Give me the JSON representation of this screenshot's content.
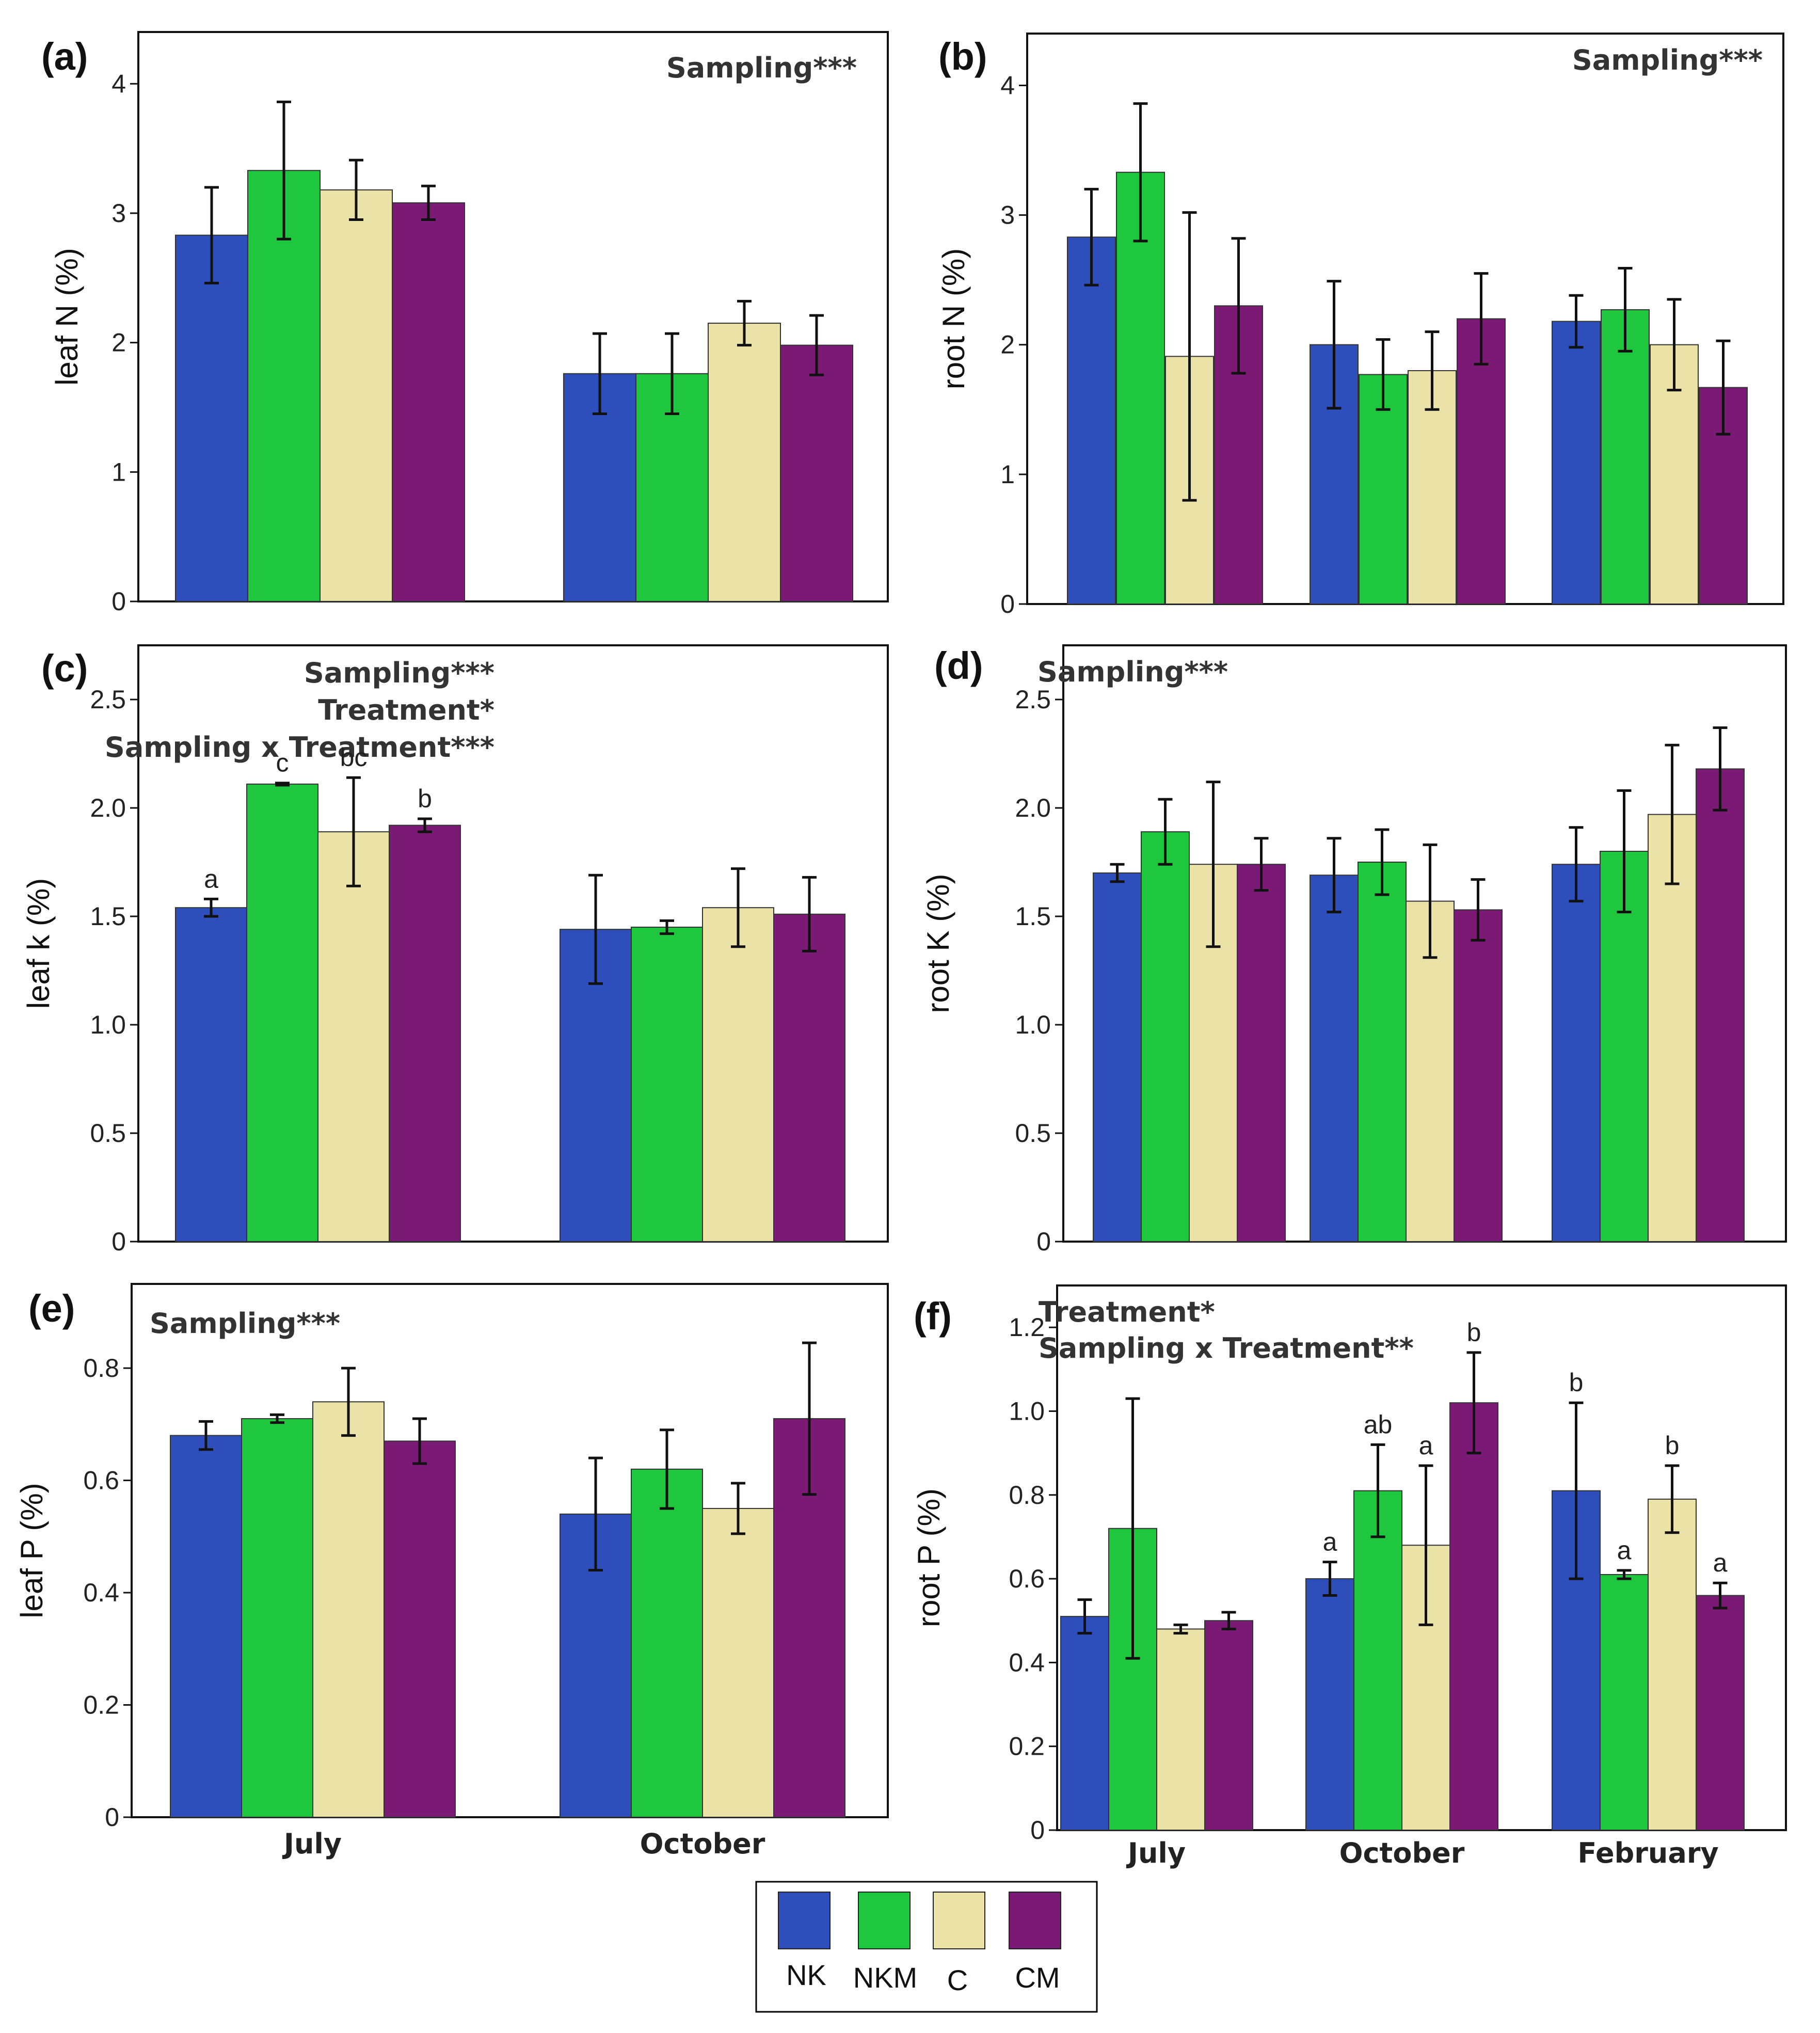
{
  "legend": {
    "items": [
      {
        "name": "NK",
        "color": "#2e4fbb"
      },
      {
        "name": "NKM",
        "color": "#1fc73f"
      },
      {
        "name": "C",
        "color": "#ebe2a8"
      },
      {
        "name": "CM",
        "color": "#7a1a74"
      }
    ]
  },
  "chart_data": [
    {
      "id": "a",
      "type": "bar",
      "panel_label": "(a)",
      "ylabel": "leaf N (%)",
      "categories": [
        "July",
        "October"
      ],
      "category_labels_shown": false,
      "ylim": [
        0,
        4.4
      ],
      "yticks": [
        0,
        1,
        2,
        3,
        4
      ],
      "ytick_labels": [
        "0",
        "1",
        "2",
        "3",
        "4"
      ],
      "stats": [
        "Sampling***"
      ],
      "stats_position": "top-right",
      "series": [
        {
          "name": "NK",
          "values": [
            2.83,
            1.76
          ],
          "errors": [
            0.37,
            0.31
          ]
        },
        {
          "name": "NKM",
          "values": [
            3.33,
            1.76
          ],
          "errors": [
            0.53,
            0.31
          ]
        },
        {
          "name": "C",
          "values": [
            3.18,
            2.15
          ],
          "errors": [
            0.23,
            0.17
          ]
        },
        {
          "name": "CM",
          "values": [
            3.08,
            1.98
          ],
          "errors": [
            0.13,
            0.23
          ]
        }
      ]
    },
    {
      "id": "b",
      "type": "bar",
      "panel_label": "(b)",
      "ylabel": "root N (%)",
      "categories": [
        "July",
        "October",
        "February"
      ],
      "category_labels_shown": false,
      "ylim": [
        0,
        4.4
      ],
      "yticks": [
        0,
        1,
        2,
        3,
        4
      ],
      "ytick_labels": [
        "0",
        "1",
        "2",
        "3",
        "4"
      ],
      "stats": [
        "Sampling***"
      ],
      "stats_position": "top-right",
      "series": [
        {
          "name": "NK",
          "values": [
            2.83,
            2.0,
            2.18
          ],
          "errors": [
            0.37,
            0.49,
            0.2
          ]
        },
        {
          "name": "NKM",
          "values": [
            3.33,
            1.77,
            2.27
          ],
          "errors": [
            0.53,
            0.27,
            0.32
          ]
        },
        {
          "name": "C",
          "values": [
            1.91,
            1.8,
            2.0
          ],
          "errors": [
            1.11,
            0.3,
            0.35
          ]
        },
        {
          "name": "CM",
          "values": [
            2.3,
            2.2,
            1.67
          ],
          "errors": [
            0.52,
            0.35,
            0.36
          ]
        }
      ]
    },
    {
      "id": "c",
      "type": "bar",
      "panel_label": "(c)",
      "ylabel": "leaf k (%)",
      "categories": [
        "July",
        "October"
      ],
      "category_labels_shown": false,
      "ylim": [
        0,
        2.75
      ],
      "yticks": [
        0,
        0.5,
        1.0,
        1.5,
        2.0,
        2.5
      ],
      "ytick_labels": [
        "0",
        "0.5",
        "1.0",
        "1.5",
        "2.0",
        "2.5"
      ],
      "stats": [
        "Sampling***",
        "Treatment*",
        "Sampling x Treatment***"
      ],
      "stats_position": "top-right",
      "series": [
        {
          "name": "NK",
          "values": [
            1.54,
            1.44
          ],
          "errors": [
            0.04,
            0.25
          ],
          "letters": [
            "a",
            ""
          ]
        },
        {
          "name": "NKM",
          "values": [
            2.11,
            1.45
          ],
          "errors": [
            0.005,
            0.03
          ],
          "letters": [
            "c",
            ""
          ]
        },
        {
          "name": "C",
          "values": [
            1.89,
            1.54
          ],
          "errors": [
            0.25,
            0.18
          ],
          "letters": [
            "bc",
            ""
          ]
        },
        {
          "name": "CM",
          "values": [
            1.92,
            1.51
          ],
          "errors": [
            0.03,
            0.17
          ],
          "letters": [
            "b",
            ""
          ]
        }
      ]
    },
    {
      "id": "d",
      "type": "bar",
      "panel_label": "(d)",
      "ylabel": "root K (%)",
      "categories": [
        "July",
        "October",
        "February"
      ],
      "category_labels_shown": false,
      "ylim": [
        0,
        2.75
      ],
      "yticks": [
        0,
        0.5,
        1.0,
        1.5,
        2.0,
        2.5
      ],
      "ytick_labels": [
        "0",
        "0.5",
        "1.0",
        "1.5",
        "2.0",
        "2.5"
      ],
      "stats": [
        "Sampling***"
      ],
      "stats_position": "top-left",
      "series": [
        {
          "name": "NK",
          "values": [
            1.7,
            1.69,
            1.74
          ],
          "errors": [
            0.04,
            0.17,
            0.17
          ]
        },
        {
          "name": "NKM",
          "values": [
            1.89,
            1.75,
            1.8
          ],
          "errors": [
            0.15,
            0.15,
            0.28
          ]
        },
        {
          "name": "C",
          "values": [
            1.74,
            1.57,
            1.97
          ],
          "errors": [
            0.38,
            0.26,
            0.32
          ]
        },
        {
          "name": "CM",
          "values": [
            1.74,
            1.53,
            2.18
          ],
          "errors": [
            0.12,
            0.14,
            0.19
          ]
        }
      ]
    },
    {
      "id": "e",
      "type": "bar",
      "panel_label": "(e)",
      "ylabel": "leaf P (%)",
      "categories": [
        "July",
        "October"
      ],
      "category_labels_shown": true,
      "ylim": [
        0,
        0.95
      ],
      "yticks": [
        0,
        0.2,
        0.4,
        0.6,
        0.8
      ],
      "ytick_labels": [
        "0",
        "0.2",
        "0.4",
        "0.6",
        "0.8"
      ],
      "stats": [
        "Sampling***"
      ],
      "stats_position": "top-left",
      "series": [
        {
          "name": "NK",
          "values": [
            0.68,
            0.54
          ],
          "errors": [
            0.025,
            0.1
          ]
        },
        {
          "name": "NKM",
          "values": [
            0.71,
            0.62
          ],
          "errors": [
            0.007,
            0.07
          ]
        },
        {
          "name": "C",
          "values": [
            0.74,
            0.55
          ],
          "errors": [
            0.06,
            0.045
          ]
        },
        {
          "name": "CM",
          "values": [
            0.67,
            0.71
          ],
          "errors": [
            0.04,
            0.135
          ]
        }
      ]
    },
    {
      "id": "f",
      "type": "bar",
      "panel_label": "(f)",
      "ylabel": "root P (%)",
      "categories": [
        "July",
        "October",
        "February"
      ],
      "category_labels_shown": true,
      "ylim": [
        0,
        1.3
      ],
      "yticks": [
        0,
        0.2,
        0.4,
        0.6,
        0.8,
        1.0,
        1.2
      ],
      "ytick_labels": [
        "0",
        "0.2",
        "0.4",
        "0.6",
        "0.8",
        "1.0",
        "1.2"
      ],
      "stats": [
        "Treatment*",
        "Sampling x Treatment**"
      ],
      "stats_position": "top-left",
      "series": [
        {
          "name": "NK",
          "values": [
            0.51,
            0.6,
            0.81
          ],
          "errors": [
            0.04,
            0.04,
            0.21
          ],
          "letters": [
            "",
            "a",
            "b"
          ]
        },
        {
          "name": "NKM",
          "values": [
            0.72,
            0.81,
            0.61
          ],
          "errors": [
            0.31,
            0.11,
            0.01
          ],
          "letters": [
            "",
            "ab",
            "a"
          ]
        },
        {
          "name": "C",
          "values": [
            0.48,
            0.68,
            0.79
          ],
          "errors": [
            0.01,
            0.19,
            0.08
          ],
          "letters": [
            "",
            "a",
            "b"
          ]
        },
        {
          "name": "CM",
          "values": [
            0.5,
            1.02,
            0.56
          ],
          "errors": [
            0.02,
            0.12,
            0.03
          ],
          "letters": [
            "",
            "b",
            "a"
          ]
        }
      ]
    }
  ]
}
